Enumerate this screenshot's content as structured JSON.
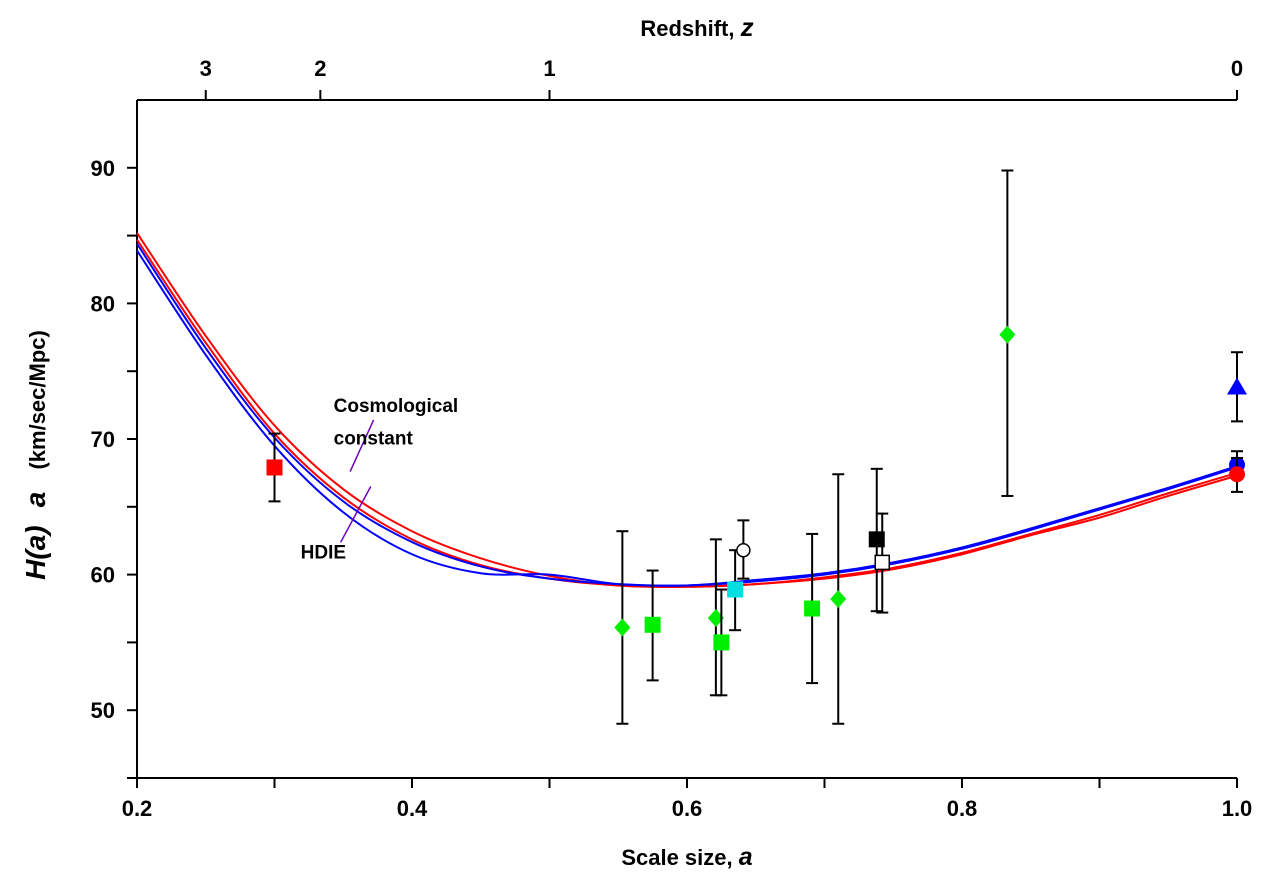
{
  "chart_data": {
    "type": "scatter",
    "title": "",
    "xlabel": {
      "text": "Scale size,",
      "var": "a"
    },
    "ylabel": {
      "var": "H(a)",
      "mult": "a",
      "unit": "(km/sec/Mpc)"
    },
    "x2label": {
      "text": "Redshift,",
      "var": "z"
    },
    "xlim": [
      0.2,
      1.0
    ],
    "ylim": [
      45,
      95
    ],
    "x_ticks": [
      {
        "value": 0.2,
        "label": "0.2"
      },
      {
        "value": 0.3,
        "label": ""
      },
      {
        "value": 0.4,
        "label": "0.4"
      },
      {
        "value": 0.5,
        "label": ""
      },
      {
        "value": 0.6,
        "label": "0.6"
      },
      {
        "value": 0.7,
        "label": ""
      },
      {
        "value": 0.8,
        "label": "0.8"
      },
      {
        "value": 0.9,
        "label": ""
      },
      {
        "value": 1.0,
        "label": "1.0"
      }
    ],
    "y_ticks": [
      {
        "value": 45,
        "label": ""
      },
      {
        "value": 50,
        "label": "50"
      },
      {
        "value": 55,
        "label": ""
      },
      {
        "value": 60,
        "label": "60"
      },
      {
        "value": 65,
        "label": ""
      },
      {
        "value": 70,
        "label": "70"
      },
      {
        "value": 75,
        "label": ""
      },
      {
        "value": 80,
        "label": "80"
      },
      {
        "value": 85,
        "label": ""
      },
      {
        "value": 90,
        "label": "90"
      }
    ],
    "z_ticks": [
      {
        "z": 3,
        "label": "3"
      },
      {
        "z": 2,
        "label": "2"
      },
      {
        "z": 1,
        "label": "1"
      },
      {
        "z": 0,
        "label": "0"
      }
    ],
    "grid": false,
    "curves": [
      {
        "color": "#ff0000",
        "x": [
          0.2,
          0.25,
          0.3,
          0.35,
          0.4,
          0.45,
          0.5,
          0.55,
          0.6,
          0.65,
          0.7,
          0.75,
          0.8,
          0.85,
          0.9,
          0.95,
          1.0
        ],
        "y": [
          85.2,
          77.6,
          71.0,
          66.3,
          63.2,
          61.2,
          59.9,
          59.2,
          59.1,
          59.3,
          59.7,
          60.4,
          61.5,
          62.9,
          64.2,
          65.8,
          67.3
        ]
      },
      {
        "color": "#ff0000",
        "x": [
          0.2,
          0.25,
          0.3,
          0.35,
          0.4,
          0.45,
          0.5,
          0.55,
          0.6,
          0.65,
          0.7,
          0.75,
          0.8,
          0.85,
          0.9,
          0.95,
          1.0
        ],
        "y": [
          84.7,
          77.1,
          70.4,
          65.7,
          62.6,
          60.7,
          59.7,
          59.2,
          59.1,
          59.3,
          59.8,
          60.5,
          61.6,
          63.0,
          64.4,
          66.0,
          67.5
        ]
      },
      {
        "color": "#0000ff",
        "x": [
          0.2,
          0.25,
          0.3,
          0.35,
          0.4,
          0.45,
          0.5,
          0.55,
          0.6,
          0.65,
          0.7,
          0.75,
          0.8,
          0.85,
          0.9,
          0.95,
          1.0
        ],
        "y": [
          84.4,
          76.7,
          70.1,
          65.4,
          62.4,
          60.6,
          59.7,
          59.3,
          59.2,
          59.5,
          60.0,
          60.8,
          61.9,
          63.3,
          64.8,
          66.3,
          67.9
        ]
      },
      {
        "color": "#0000ff",
        "x": [
          0.2,
          0.25,
          0.3,
          0.35,
          0.4,
          0.45,
          0.5,
          0.55,
          0.6,
          0.65,
          0.7,
          0.75,
          0.8,
          0.85,
          0.9,
          0.95,
          1.0
        ],
        "y": [
          83.9,
          76.2,
          69.5,
          64.6,
          61.5,
          60.1,
          60.0,
          59.3,
          59.2,
          59.6,
          60.1,
          60.9,
          62.0,
          63.4,
          64.9,
          66.4,
          68.0
        ]
      }
    ],
    "annotations": [
      {
        "text": "Cosmological",
        "x": 0.343,
        "y": 72.0,
        "pointer": [
          0.355,
          67.6
        ]
      },
      {
        "text": "constant",
        "x": 0.343,
        "y": 69.6
      },
      {
        "text": "HDIE",
        "x": 0.319,
        "y": 61.2,
        "pointer": [
          0.37,
          66.5
        ]
      }
    ],
    "points": [
      {
        "x": 0.3,
        "y": 67.9,
        "lo": 65.4,
        "hi": 70.4,
        "marker": "square",
        "color": "#ff0000"
      },
      {
        "x": 0.553,
        "y": 56.1,
        "lo": 49.0,
        "hi": 63.2,
        "marker": "diamond",
        "color": "#00ee00"
      },
      {
        "x": 0.575,
        "y": 56.3,
        "lo": 52.2,
        "hi": 60.3,
        "marker": "square",
        "color": "#00ee00"
      },
      {
        "x": 0.621,
        "y": 56.8,
        "lo": 51.1,
        "hi": 62.6,
        "marker": "diamond",
        "color": "#00ee00"
      },
      {
        "x": 0.625,
        "y": 55.0,
        "lo": 51.1,
        "hi": 58.9,
        "marker": "square",
        "color": "#00ee00"
      },
      {
        "x": 0.635,
        "y": 58.9,
        "lo": 55.9,
        "hi": 61.8,
        "marker": "square",
        "color": "#00e0e0"
      },
      {
        "x": 0.641,
        "y": 61.8,
        "lo": 59.7,
        "hi": 64.0,
        "marker": "circle-open",
        "color": "#ffffff"
      },
      {
        "x": 0.691,
        "y": 57.5,
        "lo": 52.0,
        "hi": 63.0,
        "marker": "square",
        "color": "#00ee00"
      },
      {
        "x": 0.71,
        "y": 58.2,
        "lo": 49.0,
        "hi": 67.4,
        "marker": "diamond",
        "color": "#00ee00"
      },
      {
        "x": 0.738,
        "y": 62.6,
        "lo": 57.3,
        "hi": 67.8,
        "marker": "square",
        "color": "#000000"
      },
      {
        "x": 0.742,
        "y": 60.9,
        "lo": 57.2,
        "hi": 64.5,
        "marker": "square-open",
        "color": "#ffffff"
      },
      {
        "x": 0.833,
        "y": 77.7,
        "lo": 65.8,
        "hi": 89.8,
        "marker": "diamond",
        "color": "#00ee00"
      },
      {
        "x": 1.0,
        "y": 73.8,
        "lo": 71.3,
        "hi": 76.4,
        "marker": "triangle",
        "color": "#0000ff"
      },
      {
        "x": 1.0,
        "y": 68.1,
        "lo": 67.5,
        "hi": 69.1,
        "marker": "circle",
        "color": "#0000ff"
      },
      {
        "x": 1.0,
        "y": 67.4,
        "lo": 66.1,
        "hi": 68.6,
        "marker": "circle",
        "color": "#ff0000"
      }
    ]
  }
}
